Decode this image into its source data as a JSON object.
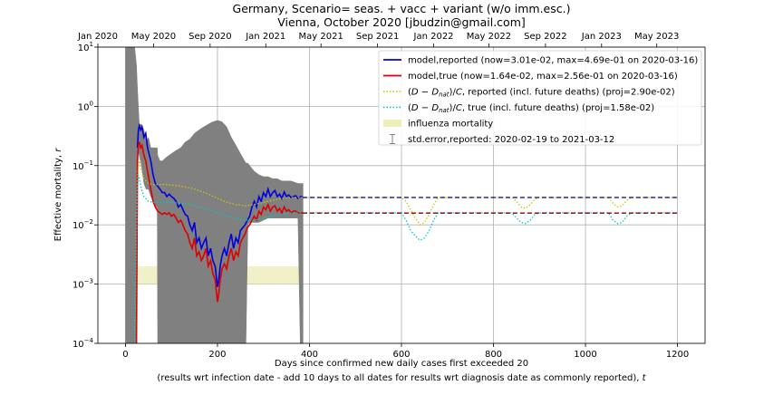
{
  "chart_data": {
    "type": "line",
    "title": "Germany, Scenario= seas. + vacc + variant (w/o imm.esc.)",
    "subtitle": "Vienna, October 2020 [jbudzin@gmail.com]",
    "xlabel": "Days since confirmed new daily cases first exceeded 20",
    "xlabel2": "(results wrt infection date - add 10 days to all dates for results wrt diagnosis date as commonly reported), ",
    "xlabel2_var": "t",
    "ylabel": "Effective mortality, ",
    "ylabel_var": "r",
    "xlim": [
      -60,
      1260
    ],
    "ylim": [
      0.0001,
      10
    ],
    "yscale": "log",
    "grid": true,
    "legend_position": "top-right",
    "x_ticks": [
      0,
      200,
      400,
      600,
      800,
      1000,
      1200
    ],
    "x_tick_labels": [
      "0",
      "200",
      "400",
      "600",
      "800",
      "1000",
      "1200"
    ],
    "y_ticks": [
      {
        "value": 0.0001,
        "base": "10",
        "exp": "−4"
      },
      {
        "value": 0.001,
        "base": "10",
        "exp": "−3"
      },
      {
        "value": 0.01,
        "base": "10",
        "exp": "−2"
      },
      {
        "value": 0.1,
        "base": "10",
        "exp": "−1"
      },
      {
        "value": 1,
        "base": "10",
        "exp": "0"
      },
      {
        "value": 10,
        "base": "10",
        "exp": "1"
      }
    ],
    "top_ticks": [
      {
        "day": -60,
        "label": "Jan 2020"
      },
      {
        "day": 61,
        "label": "May 2020"
      },
      {
        "day": 184,
        "label": "Sep 2020"
      },
      {
        "day": 305,
        "label": "Jan 2021"
      },
      {
        "day": 425,
        "label": "May 2021"
      },
      {
        "day": 548,
        "label": "Sep 2021"
      },
      {
        "day": 670,
        "label": "Jan 2022"
      },
      {
        "day": 790,
        "label": "May 2022"
      },
      {
        "day": 913,
        "label": "Sep 2022"
      },
      {
        "day": 1035,
        "label": "Jan 2023"
      },
      {
        "day": 1155,
        "label": "May 2023"
      }
    ],
    "colors": {
      "reported": "#0000dd",
      "true": "#dd0000",
      "proj_reported": "#c8c800",
      "proj_true": "#00c8c8",
      "flu": "#eeeebb",
      "error": "#808080",
      "dashed_reported": "#000080",
      "dashed_true": "#800000"
    },
    "flu_band": {
      "x": [
        0,
        385
      ],
      "y": [
        0.001,
        0.002
      ]
    },
    "error_band": [
      [
        0,
        0.0001,
        10
      ],
      [
        5,
        0.0001,
        10
      ],
      [
        10,
        0.0001,
        10
      ],
      [
        15,
        0.0001,
        10
      ],
      [
        20,
        0.0001,
        10
      ],
      [
        24,
        0.0001,
        5
      ],
      [
        26,
        0.2,
        2
      ],
      [
        30,
        0.15,
        0.5
      ],
      [
        35,
        0.1,
        0.5
      ],
      [
        40,
        0.05,
        0.4
      ],
      [
        45,
        0.04,
        0.25
      ],
      [
        50,
        0.04,
        0.3
      ],
      [
        55,
        0.03,
        0.2
      ],
      [
        60,
        0.025,
        0.2
      ],
      [
        65,
        0.02,
        0.2
      ],
      [
        69,
        0.02,
        0.2
      ],
      [
        70,
        0.0001,
        0.15
      ],
      [
        75,
        0.0001,
        0.12
      ],
      [
        80,
        0.0001,
        0.12
      ],
      [
        90,
        0.0001,
        0.14
      ],
      [
        100,
        0.0001,
        0.16
      ],
      [
        110,
        0.0001,
        0.18
      ],
      [
        120,
        0.0001,
        0.2
      ],
      [
        130,
        0.0001,
        0.25
      ],
      [
        140,
        0.0001,
        0.28
      ],
      [
        150,
        0.0001,
        0.35
      ],
      [
        160,
        0.0001,
        0.4
      ],
      [
        170,
        0.0001,
        0.45
      ],
      [
        180,
        0.0001,
        0.5
      ],
      [
        190,
        0.0001,
        0.55
      ],
      [
        200,
        0.0001,
        0.58
      ],
      [
        210,
        0.0001,
        0.55
      ],
      [
        220,
        0.0001,
        0.45
      ],
      [
        230,
        0.0001,
        0.3
      ],
      [
        240,
        0.0001,
        0.22
      ],
      [
        250,
        0.0001,
        0.16
      ],
      [
        262,
        0.0001,
        0.11
      ],
      [
        266,
        0.01,
        0.11
      ],
      [
        270,
        0.011,
        0.1
      ],
      [
        280,
        0.011,
        0.08
      ],
      [
        290,
        0.011,
        0.07
      ],
      [
        300,
        0.012,
        0.065
      ],
      [
        310,
        0.013,
        0.065
      ],
      [
        320,
        0.013,
        0.06
      ],
      [
        330,
        0.013,
        0.06
      ],
      [
        340,
        0.013,
        0.055
      ],
      [
        360,
        0.013,
        0.055
      ],
      [
        375,
        0.013,
        0.05
      ],
      [
        380,
        0.0001,
        0.05
      ],
      [
        386,
        0.0001,
        0.05
      ]
    ],
    "series": [
      {
        "name": "model,reported (now=3.01e-02, max=4.69e-01 on 2020-03-16)",
        "color": "#0000dd",
        "style": "solid",
        "x": [
          26,
          28,
          30,
          33,
          36,
          40,
          44,
          48,
          55,
          60,
          65,
          70,
          75,
          80,
          85,
          90,
          95,
          100,
          105,
          110,
          115,
          120,
          125,
          130,
          135,
          140,
          145,
          150,
          155,
          160,
          165,
          170,
          175,
          180,
          185,
          190,
          195,
          200,
          203,
          206,
          210,
          215,
          220,
          225,
          230,
          235,
          240,
          245,
          250,
          255,
          260,
          265,
          270,
          275,
          280,
          285,
          290,
          295,
          300,
          305,
          310,
          315,
          320,
          325,
          330,
          335,
          340,
          345,
          350,
          355,
          360,
          365,
          370,
          375,
          380,
          385
        ],
        "values": [
          0.2,
          0.4,
          0.47,
          0.4,
          0.45,
          0.3,
          0.35,
          0.2,
          0.12,
          0.07,
          0.05,
          0.045,
          0.04,
          0.035,
          0.035,
          0.03,
          0.033,
          0.03,
          0.028,
          0.025,
          0.02,
          0.022,
          0.018,
          0.015,
          0.014,
          0.01,
          0.008,
          0.011,
          0.005,
          0.006,
          0.004,
          0.005,
          0.006,
          0.003,
          0.004,
          0.0025,
          0.002,
          0.0009,
          0.0012,
          0.002,
          0.003,
          0.004,
          0.003,
          0.005,
          0.007,
          0.004,
          0.006,
          0.005,
          0.008,
          0.009,
          0.01,
          0.012,
          0.014,
          0.02,
          0.025,
          0.02,
          0.03,
          0.025,
          0.035,
          0.03,
          0.04,
          0.03,
          0.035,
          0.038,
          0.03,
          0.033,
          0.028,
          0.036,
          0.03,
          0.032,
          0.029,
          0.03,
          0.031,
          0.028,
          0.03,
          0.03
        ]
      },
      {
        "name": "model,true (now=1.64e-02, max=2.56e-01 on 2020-03-16)",
        "color": "#dd0000",
        "style": "solid",
        "x": [
          24,
          26,
          28,
          30,
          33,
          36,
          40,
          44,
          48,
          55,
          60,
          65,
          70,
          75,
          80,
          85,
          90,
          95,
          100,
          105,
          110,
          115,
          120,
          125,
          130,
          135,
          140,
          145,
          150,
          155,
          160,
          165,
          170,
          175,
          180,
          185,
          190,
          195,
          200,
          203,
          206,
          210,
          215,
          220,
          225,
          230,
          235,
          240,
          245,
          250,
          255,
          260,
          265,
          270,
          275,
          280,
          285,
          290,
          295,
          300,
          305,
          310,
          315,
          320,
          325,
          330,
          335,
          340,
          345,
          350,
          355,
          360,
          365,
          370,
          375,
          380,
          385
        ],
        "values": [
          0.0001,
          0.12,
          0.22,
          0.25,
          0.2,
          0.22,
          0.15,
          0.12,
          0.08,
          0.04,
          0.025,
          0.02,
          0.017,
          0.016,
          0.015,
          0.016,
          0.015,
          0.016,
          0.014,
          0.015,
          0.013,
          0.011,
          0.012,
          0.01,
          0.008,
          0.007,
          0.005,
          0.004,
          0.006,
          0.003,
          0.0035,
          0.0025,
          0.003,
          0.004,
          0.002,
          0.0025,
          0.0015,
          0.0012,
          0.0005,
          0.0007,
          0.0012,
          0.0018,
          0.0022,
          0.0018,
          0.003,
          0.004,
          0.0025,
          0.0035,
          0.003,
          0.005,
          0.006,
          0.007,
          0.009,
          0.01,
          0.012,
          0.014,
          0.012,
          0.017,
          0.015,
          0.02,
          0.018,
          0.022,
          0.017,
          0.02,
          0.021,
          0.017,
          0.019,
          0.016,
          0.02,
          0.017,
          0.018,
          0.016,
          0.017,
          0.017,
          0.016,
          0.016,
          0.016
        ]
      },
      {
        "name": "(D − D_nat)/C, reported (incl. future deaths) (proj=2.90e-02)",
        "label_parts": {
          "pre": "(",
          "D1": "D",
          "minus": " − ",
          "D2": "D",
          "sub": "nat",
          "close": ")/",
          "C": "C",
          "post": ", reported (incl. future deaths) (proj=2.90e-02)"
        },
        "color": "#c8c800",
        "style": "dotted",
        "x": [
          20,
          22,
          24,
          26,
          28,
          30,
          35,
          40,
          50,
          60,
          80,
          100,
          120,
          140,
          160,
          180,
          200,
          220,
          240,
          260,
          280,
          300,
          320,
          340,
          360,
          380,
          400,
          500,
          600,
          610,
          620,
          630,
          640,
          650,
          660,
          670,
          680,
          700,
          800,
          840,
          850,
          860,
          870,
          880,
          890,
          900,
          1000,
          1050,
          1060,
          1070,
          1080,
          1090,
          1100,
          1200
        ],
        "values": [
          0.0001,
          0.001,
          0.01,
          0.05,
          0.1,
          0.12,
          0.08,
          0.06,
          0.05,
          0.048,
          0.048,
          0.047,
          0.045,
          0.042,
          0.038,
          0.033,
          0.028,
          0.024,
          0.022,
          0.021,
          0.022,
          0.024,
          0.026,
          0.028,
          0.029,
          0.029,
          0.029,
          0.029,
          0.029,
          0.025,
          0.018,
          0.013,
          0.01,
          0.011,
          0.015,
          0.022,
          0.029,
          0.029,
          0.029,
          0.029,
          0.025,
          0.02,
          0.019,
          0.022,
          0.027,
          0.029,
          0.029,
          0.029,
          0.023,
          0.02,
          0.021,
          0.026,
          0.029,
          0.029
        ]
      },
      {
        "name": "(D − D_nat)/C, true (incl. future deaths) (proj=1.58e-02)",
        "label_parts": {
          "pre": "(",
          "D1": "D",
          "minus": " − ",
          "D2": "D",
          "sub": "nat",
          "close": ")/",
          "C": "C",
          "post": ", true (incl. future deaths) (proj=1.58e-02)"
        },
        "color": "#00c8c8",
        "style": "dotted",
        "x": [
          20,
          22,
          24,
          26,
          28,
          30,
          35,
          40,
          50,
          60,
          80,
          100,
          120,
          140,
          160,
          180,
          200,
          220,
          240,
          260,
          280,
          300,
          320,
          340,
          360,
          380,
          400,
          500,
          600,
          610,
          620,
          630,
          640,
          650,
          660,
          670,
          680,
          700,
          800,
          840,
          850,
          860,
          870,
          880,
          890,
          900,
          1000,
          1050,
          1060,
          1070,
          1080,
          1090,
          1100,
          1200
        ],
        "values": [
          0.0001,
          0.001,
          0.01,
          0.04,
          0.07,
          0.06,
          0.04,
          0.03,
          0.025,
          0.024,
          0.024,
          0.024,
          0.023,
          0.022,
          0.02,
          0.018,
          0.016,
          0.014,
          0.013,
          0.012,
          0.012,
          0.013,
          0.014,
          0.015,
          0.016,
          0.016,
          0.016,
          0.016,
          0.016,
          0.012,
          0.008,
          0.0065,
          0.0055,
          0.006,
          0.008,
          0.012,
          0.016,
          0.016,
          0.016,
          0.016,
          0.013,
          0.011,
          0.0105,
          0.012,
          0.015,
          0.016,
          0.016,
          0.016,
          0.012,
          0.0105,
          0.011,
          0.014,
          0.016,
          0.016
        ]
      },
      {
        "name": "",
        "color": "#000080",
        "style": "dashed",
        "x": [
          385,
          1200
        ],
        "values": [
          0.029,
          0.029
        ]
      },
      {
        "name": "",
        "color": "#800000",
        "style": "dashed",
        "x": [
          385,
          1200
        ],
        "values": [
          0.0158,
          0.0158
        ]
      }
    ],
    "legend": [
      {
        "label": "model,reported (now=3.01e-02, max=4.69e-01 on 2020-03-16)",
        "kind": "line",
        "color": "#0000dd"
      },
      {
        "label": "model,true (now=1.64e-02, max=2.56e-01 on 2020-03-16)",
        "kind": "line",
        "color": "#dd0000"
      },
      {
        "kind": "dotted",
        "color": "#c8c800",
        "pre": "(",
        "D1": "D",
        "minus": " − ",
        "D2": "D",
        "sub": "nat",
        "close": ")/",
        "C": "C",
        "post": ", reported (incl. future deaths) (proj=2.90e-02)"
      },
      {
        "kind": "dotted",
        "color": "#00c8c8",
        "pre": "(",
        "D1": "D",
        "minus": " − ",
        "D2": "D",
        "sub": "nat",
        "close": ")/",
        "C": "C",
        "post": ", true (incl. future deaths) (proj=1.58e-02)"
      },
      {
        "label": "influenza mortality",
        "kind": "patch",
        "color": "#eeeebb"
      },
      {
        "label": "std.error,reported: 2020-02-19 to 2021-03-12",
        "kind": "errorbar",
        "color": "#808080"
      }
    ]
  }
}
